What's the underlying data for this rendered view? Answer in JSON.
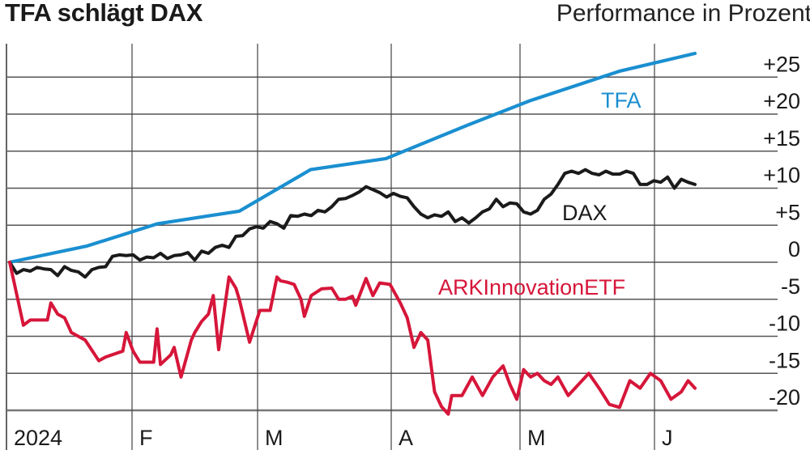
{
  "header": {
    "title": "TFA schlägt DAX",
    "subtitle": "Performance in Prozent"
  },
  "colors": {
    "tfa": "#1a8fd0",
    "dax": "#1a1a1a",
    "ark": "#d6163a",
    "grid": "#555555"
  },
  "chart_data": {
    "type": "line",
    "title": "TFA schlägt DAX",
    "subtitle": "Performance in Prozent",
    "xlabel": "",
    "ylabel": "Performance in Prozent",
    "ylim": [
      -20,
      25
    ],
    "y_ticks": [
      "+25",
      "+20",
      "+15",
      "+10",
      "+5",
      "0",
      "-5",
      "-10",
      "-15",
      "-20"
    ],
    "x_ticks": [
      "2024",
      "F",
      "M",
      "A",
      "M",
      "J"
    ],
    "grid": true,
    "legend_position": "inline labels",
    "series": [
      {
        "name": "TFA",
        "label_text": "TFA",
        "x_pct": [
          0,
          11.3,
          21.6,
          33.5,
          43.9,
          54.9,
          66.8,
          75.9,
          89.0,
          100
        ],
        "values": [
          0,
          2.2,
          5.2,
          6.9,
          12.5,
          14.0,
          18.5,
          21.8,
          25.8,
          28.2
        ]
      },
      {
        "name": "DAX",
        "label_text": "DAX",
        "x_pct": [
          0,
          1,
          2,
          3,
          4,
          5,
          6,
          7,
          8,
          9,
          10,
          11,
          12,
          13,
          14,
          15,
          16,
          17,
          18,
          19,
          20,
          21,
          22,
          23,
          24,
          25,
          26,
          27,
          28,
          29,
          30,
          31,
          32,
          33,
          34,
          35,
          36,
          37,
          38,
          39,
          40,
          41,
          42,
          43,
          44,
          45,
          46,
          47,
          48,
          49,
          50,
          51,
          52,
          53,
          54,
          55,
          56,
          57,
          58,
          59,
          60,
          61,
          62,
          63,
          64,
          65,
          66,
          67,
          68,
          69,
          70,
          71,
          72,
          73,
          74,
          75,
          76,
          77,
          78,
          79,
          80,
          81,
          82,
          83,
          84,
          85,
          86,
          87,
          88,
          89,
          90,
          91,
          92,
          93,
          94,
          95,
          96,
          97,
          98,
          99,
          100
        ],
        "values": [
          0,
          -1.5,
          -1.0,
          -1.2,
          -0.7,
          -0.9,
          -1.0,
          -1.8,
          -0.6,
          -1.1,
          -1.3,
          -2.0,
          -1.0,
          -0.7,
          -0.6,
          0.8,
          1.0,
          0.9,
          1.0,
          0.3,
          0.7,
          0.6,
          1.2,
          0.5,
          0.9,
          1.0,
          1.3,
          0.3,
          1.5,
          1.2,
          2.0,
          2.3,
          2.0,
          3.5,
          3.6,
          4.5,
          4.8,
          4.6,
          5.5,
          5.2,
          4.6,
          6.3,
          6.2,
          6.5,
          6.3,
          7.0,
          6.8,
          7.5,
          8.5,
          8.6,
          9.0,
          9.5,
          10.2,
          9.8,
          9.4,
          8.8,
          9.3,
          8.9,
          8.7,
          7.5,
          6.5,
          6.0,
          6.4,
          6.2,
          6.8,
          5.5,
          6.0,
          5.3,
          6.0,
          6.8,
          7.2,
          8.5,
          7.5,
          8.0,
          7.9,
          6.8,
          6.5,
          7.0,
          8.5,
          9.2,
          10.5,
          12.0,
          12.3,
          12.0,
          12.5,
          12.0,
          11.8,
          12.3,
          11.9,
          11.9,
          12.3,
          12.0,
          10.5,
          10.5,
          11.0,
          10.8,
          11.5,
          10.0,
          11.2,
          10.8,
          10.5
        ]
      },
      {
        "name": "ARK Innovation ETF",
        "label_text": "ARKInnovationETF",
        "x_pct": [
          0,
          2.0,
          3.0,
          5.5,
          6.0,
          7.0,
          8.0,
          9.0,
          11.0,
          13.0,
          14.0,
          16.5,
          17.0,
          18.0,
          19.0,
          21.0,
          21.5,
          22.0,
          23.5,
          24.0,
          25.0,
          26.5,
          27.0,
          28.0,
          29.0,
          29.7,
          30.5,
          32.0,
          33.0,
          33.5,
          35.0,
          36.5,
          38.0,
          39.0,
          39.5,
          40.5,
          41.5,
          42.5,
          43.0,
          44.0,
          45.5,
          47.0,
          48.0,
          49.0,
          50.0,
          50.5,
          52.0,
          53.0,
          54.0,
          55.5,
          57.0,
          58.0,
          59.0,
          60.0,
          61.0,
          62.0,
          63.0,
          64.0,
          64.5,
          66.0,
          67.5,
          69.0,
          70.5,
          72.0,
          73.0,
          74.0,
          75.0,
          76.0,
          77.0,
          78.0,
          79.0,
          80.0,
          81.5,
          83.0,
          84.5,
          86.0,
          87.5,
          89.0,
          90.5,
          92.0,
          93.5,
          95.0,
          96.5,
          98.0,
          99.0,
          100
        ],
        "values": [
          0,
          -8.5,
          -7.8,
          -7.8,
          -5.5,
          -7.0,
          -7.5,
          -9.5,
          -10.5,
          -13.3,
          -12.8,
          -12.0,
          -9.5,
          -12.0,
          -13.5,
          -13.5,
          -9.0,
          -13.8,
          -12.5,
          -11.5,
          -15.5,
          -10.5,
          -9.5,
          -8.0,
          -7.0,
          -4.5,
          -11.8,
          -2.0,
          -3.5,
          -5.0,
          -10.8,
          -6.5,
          -6.5,
          -2.0,
          -2.5,
          -2.7,
          -3.0,
          -5.0,
          -7.3,
          -4.5,
          -3.6,
          -3.5,
          -5.0,
          -5.0,
          -4.6,
          -5.8,
          -2.2,
          -4.5,
          -2.8,
          -3.0,
          -5.5,
          -7.5,
          -11.5,
          -9.5,
          -10.5,
          -17.5,
          -19.5,
          -20.5,
          -18.0,
          -18.0,
          -15.5,
          -18.0,
          -15.5,
          -14.0,
          -16.5,
          -18.5,
          -14.5,
          -15.5,
          -15.0,
          -16.0,
          -16.5,
          -15.5,
          -18.0,
          -16.5,
          -15.0,
          -17.0,
          -19.2,
          -19.6,
          -16.0,
          -17.0,
          -15.0,
          -16.0,
          -18.5,
          -17.5,
          -16.0,
          -17.0
        ]
      }
    ]
  }
}
